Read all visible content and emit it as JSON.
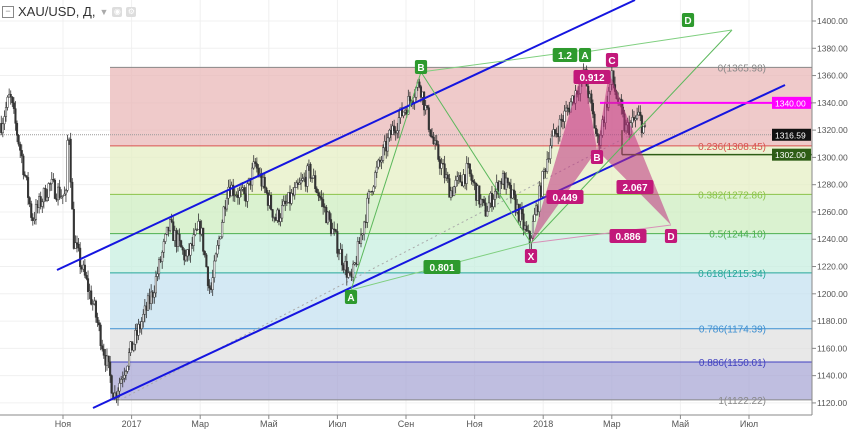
{
  "header": {
    "symbol": "XAU/USD, Д,",
    "dropdown_icon": "caret-down-icon",
    "collapse_icon": "minus-box-icon",
    "eye_icon": "eye-icon",
    "settings_icon": "gear-icon"
  },
  "chart_data": {
    "type": "candlestick",
    "title": "XAU/USD, Д",
    "ylim": [
      1120,
      1400
    ],
    "y_ticks": [
      "1120.00",
      "1140.00",
      "1160.00",
      "1180.00",
      "1200.00",
      "1220.00",
      "1240.00",
      "1260.00",
      "1280.00",
      "1300.00",
      "1320.00",
      "1340.00",
      "1360.00",
      "1380.00",
      "1400.00"
    ],
    "x_ticks": [
      {
        "label": "Ноя",
        "m": 0
      },
      {
        "label": "2017",
        "m": 2
      },
      {
        "label": "Мар",
        "m": 4
      },
      {
        "label": "Май",
        "m": 6
      },
      {
        "label": "Июл",
        "m": 8
      },
      {
        "label": "Сен",
        "m": 10
      },
      {
        "label": "Ноя",
        "m": 12
      },
      {
        "label": "2018",
        "m": 14
      },
      {
        "label": "Мар",
        "m": 16
      },
      {
        "label": "Май",
        "m": 18
      },
      {
        "label": "Июл",
        "m": 20
      }
    ],
    "price_path": [
      [
        -1.8,
        1325
      ],
      [
        -1.55,
        1345
      ],
      [
        -1.2,
        1300
      ],
      [
        -0.9,
        1255
      ],
      [
        -0.4,
        1280
      ],
      [
        0.1,
        1270
      ],
      [
        0.15,
        1335
      ],
      [
        0.3,
        1240
      ],
      [
        0.9,
        1190
      ],
      [
        1.5,
        1125
      ],
      [
        2.0,
        1160
      ],
      [
        2.6,
        1200
      ],
      [
        3.1,
        1250
      ],
      [
        3.6,
        1225
      ],
      [
        4.0,
        1250
      ],
      [
        4.3,
        1200
      ],
      [
        4.8,
        1280
      ],
      [
        5.3,
        1270
      ],
      [
        5.6,
        1295
      ],
      [
        6.2,
        1255
      ],
      [
        6.8,
        1275
      ],
      [
        7.2,
        1290
      ],
      [
        7.8,
        1250
      ],
      [
        8.4,
        1208
      ],
      [
        9.0,
        1280
      ],
      [
        9.6,
        1320
      ],
      [
        10.4,
        1355
      ],
      [
        10.8,
        1310
      ],
      [
        11.3,
        1275
      ],
      [
        11.8,
        1290
      ],
      [
        12.3,
        1260
      ],
      [
        12.8,
        1285
      ],
      [
        13.2,
        1265
      ],
      [
        13.6,
        1238
      ],
      [
        14.2,
        1310
      ],
      [
        14.8,
        1340
      ],
      [
        15.2,
        1362
      ],
      [
        15.6,
        1310
      ],
      [
        16.0,
        1358
      ],
      [
        16.4,
        1320
      ],
      [
        16.8,
        1330
      ],
      [
        17.0,
        1316
      ]
    ],
    "fib_levels": [
      {
        "label": "0(1365.98)",
        "value": 1365.98,
        "color": "#888888",
        "fill": "#eab8b8"
      },
      {
        "label": "0.236(1308.45)",
        "value": 1308.45,
        "color": "#d9534f",
        "fill": "#e6efc4"
      },
      {
        "label": "0.382(1272.86)",
        "value": 1272.86,
        "color": "#8bc34a",
        "fill": "#cdeec0"
      },
      {
        "label": "0.5(1244.10)",
        "value": 1244.1,
        "color": "#4caf50",
        "fill": "#c8efe0"
      },
      {
        "label": "0.618(1215.34)",
        "value": 1215.34,
        "color": "#26a69a",
        "fill": "#c6e2f0"
      },
      {
        "label": "0.786(1174.39)",
        "value": 1174.39,
        "color": "#3d8fd1",
        "fill": "#e0e0e0"
      },
      {
        "label": "0.886(1150.01)",
        "value": 1150.01,
        "color": "#3f3fbf",
        "fill": "#aaa8d6"
      },
      {
        "label": "1(1122.22)",
        "value": 1122.22,
        "color": "#888888",
        "fill": null
      }
    ],
    "price_labels": [
      {
        "label": "1340.00",
        "value": 1340,
        "bg": "#ff00ff"
      },
      {
        "label": "1316.59",
        "value": 1316.59,
        "bg": "#111111"
      },
      {
        "label": "1302.00",
        "value": 1302,
        "bg": "#2e5d16"
      }
    ],
    "green_pattern": {
      "points": [
        "A",
        "B",
        "A",
        "D"
      ],
      "ratios": [
        "0.801",
        "1.2"
      ]
    },
    "pink_pattern": {
      "points": [
        "X",
        "A",
        "B",
        "C",
        "D"
      ],
      "ratios": [
        "0.912",
        "0.449",
        "2.067",
        "0.886"
      ]
    }
  }
}
